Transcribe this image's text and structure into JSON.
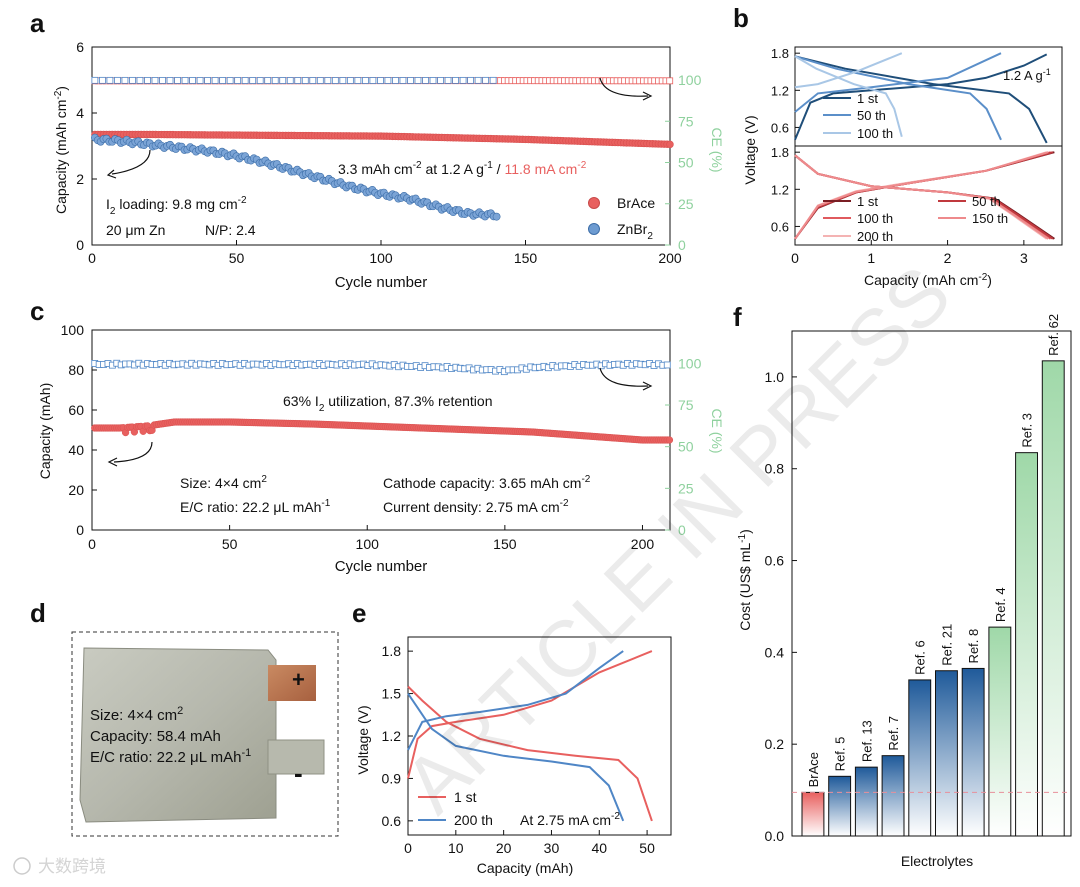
{
  "colors": {
    "red": "#e8605f",
    "blue": "#4f86c6",
    "green": "#a8d8b0",
    "darkred": "#7a1e24",
    "darkblue": "#1f4e79",
    "ce_green": "#8fd19e"
  },
  "watermark": "ARTICLE IN PRESS",
  "logo_text": "大数跨境",
  "chart_data": [
    {
      "panel": "a",
      "type": "scatter",
      "xlabel": "Cycle number",
      "ylabel": "Capacity (mAh cm-2)",
      "y2label": "CE (%)",
      "xlim": [
        0,
        200
      ],
      "ylim": [
        0,
        6
      ],
      "y2lim": [
        0,
        120
      ],
      "xticks": [
        "0",
        "50",
        "100",
        "150",
        "200"
      ],
      "yticks": [
        "0",
        "2",
        "4",
        "6"
      ],
      "y2ticks": [
        "0",
        "25",
        "50",
        "75",
        "100"
      ],
      "series": [
        {
          "name": "BrAce",
          "kind": "capacity",
          "x": [
            0,
            20,
            50,
            100,
            150,
            200
          ],
          "y": [
            3.35,
            3.35,
            3.33,
            3.3,
            3.2,
            3.05
          ]
        },
        {
          "name": "ZnBr2",
          "kind": "capacity",
          "x": [
            0,
            10,
            20,
            30,
            40,
            50,
            60,
            70,
            80,
            90,
            100,
            110,
            120,
            130,
            140
          ],
          "y": [
            3.2,
            3.15,
            3.05,
            2.95,
            2.85,
            2.7,
            2.5,
            2.25,
            2.0,
            1.75,
            1.55,
            1.4,
            1.15,
            0.95,
            0.9
          ]
        },
        {
          "name": "BrAce",
          "kind": "ce",
          "x": [
            0,
            50,
            100,
            150,
            200
          ],
          "y": [
            99.5,
            99.5,
            99.6,
            99.6,
            99.5
          ]
        },
        {
          "name": "ZnBr2",
          "kind": "ce",
          "x": [
            0,
            50,
            100,
            140
          ],
          "y": [
            99.8,
            99.7,
            99.7,
            99.8
          ]
        }
      ],
      "annotations": {
        "headline_a": "3.3 mAh cm",
        "headline_b": "-2",
        "headline_c": " at 1.2 A g",
        "headline_d": "-1",
        "headline_e": " / ",
        "headline_f": "11.8 mA cm",
        "headline_g": "-2",
        "loading_a": "I",
        "loading_b": "2",
        "loading_c": " loading: 9.8 mg cm",
        "loading_d": "-2",
        "zn": "20 μm Zn",
        "np": "N/P: 2.4"
      },
      "legend": [
        "BrAce",
        "ZnBr2"
      ]
    },
    {
      "panel": "b",
      "type": "line",
      "xlabel": "Capacity (mAh cm-2)",
      "ylabel": "Voltage (V)",
      "xlim": [
        0,
        3.5
      ],
      "xticks": [
        "0",
        "1",
        "2",
        "3"
      ],
      "yticks": [
        "0.6",
        "1.2",
        "1.8"
      ],
      "rate_label": "1.2 A g",
      "rate_sup": "-1",
      "top_series": [
        {
          "name": "1 st",
          "color": "#1f4e79",
          "x": [
            0,
            0.2,
            0.5,
            1.0,
            1.5,
            2.0,
            2.5,
            3.0,
            3.3
          ],
          "y": [
            0.4,
            1.0,
            1.15,
            1.2,
            1.25,
            1.3,
            1.4,
            1.6,
            1.78
          ]
        },
        {
          "name": "50 th",
          "color": "#5b8fc9",
          "x": [
            0,
            0.3,
            1.0,
            2.0,
            2.7
          ],
          "y": [
            0.85,
            1.15,
            1.25,
            1.4,
            1.8
          ]
        },
        {
          "name": "100 th",
          "color": "#a9c7e6",
          "x": [
            0,
            0.3,
            0.8,
            1.4
          ],
          "y": [
            1.25,
            1.3,
            1.5,
            1.8
          ]
        }
      ],
      "bottom_series": [
        {
          "name": "1 st",
          "color": "#7a1e24",
          "x": [
            0,
            0.3,
            0.8,
            1.5,
            2.5,
            3.4
          ],
          "y": [
            0.4,
            0.9,
            1.15,
            1.3,
            1.5,
            1.8
          ]
        },
        {
          "name": "100 th",
          "color": "#e05a5e",
          "x": [
            0,
            0.3,
            0.8,
            1.5,
            2.5,
            3.35
          ],
          "y": [
            0.4,
            0.92,
            1.16,
            1.3,
            1.5,
            1.8
          ]
        },
        {
          "name": "200 th",
          "color": "#f4b3b3",
          "x": [
            0,
            0.3,
            0.8,
            1.5,
            2.5,
            3.3
          ],
          "y": [
            0.4,
            0.94,
            1.17,
            1.31,
            1.5,
            1.8
          ]
        },
        {
          "name": "50 th",
          "color": "#c0393e",
          "x": [
            0,
            0.3,
            0.8,
            1.5,
            2.5,
            3.38
          ],
          "y": [
            0.4,
            0.91,
            1.15,
            1.3,
            1.5,
            1.8
          ]
        },
        {
          "name": "150 th",
          "color": "#ee8a8c",
          "x": [
            0,
            0.3,
            0.8,
            1.5,
            2.5,
            3.32
          ],
          "y": [
            0.4,
            0.93,
            1.16,
            1.3,
            1.5,
            1.8
          ]
        }
      ]
    },
    {
      "panel": "c",
      "type": "scatter",
      "xlabel": "Cycle number",
      "ylabel": "Capacity (mAh)",
      "y2label": "CE (%)",
      "xlim": [
        0,
        210
      ],
      "ylim": [
        0,
        100
      ],
      "y2lim": [
        0,
        120
      ],
      "xticks": [
        "0",
        "50",
        "100",
        "150",
        "200"
      ],
      "yticks": [
        "0",
        "20",
        "40",
        "60",
        "80",
        "100"
      ],
      "y2ticks": [
        "0",
        "25",
        "50",
        "75",
        "100"
      ],
      "series": [
        {
          "name": "capacity",
          "x": [
            0,
            10,
            20,
            30,
            50,
            80,
            100,
            120,
            140,
            160,
            180,
            200,
            210
          ],
          "y": [
            51,
            51,
            52,
            54,
            54,
            53,
            52,
            51,
            50,
            49,
            47,
            45,
            45
          ]
        },
        {
          "name": "CE",
          "x": [
            0,
            50,
            100,
            130,
            150,
            160,
            180,
            200,
            210
          ],
          "y": [
            99.5,
            99.4,
            99.2,
            97.5,
            95.5,
            97.5,
            99,
            99.5,
            99
          ]
        }
      ],
      "annotations": {
        "util_a": "63% I",
        "util_b": "2",
        "util_c": " utilization, 87.3% retention",
        "size_a": "Size: 4×4 cm",
        "size_b": "2",
        "ec_a": "E/C ratio: 22.2 μL mAh",
        "ec_b": "-1",
        "cath_a": "Cathode capacity: 3.65 mAh cm",
        "cath_b": "-2",
        "cd_a": "Current density: 2.75 mA cm",
        "cd_b": "-2"
      }
    },
    {
      "panel": "e",
      "type": "line",
      "xlabel": "Capacity (mAh)",
      "ylabel": "Voltage (V)",
      "xlim": [
        0,
        55
      ],
      "ylim": [
        0.5,
        1.9
      ],
      "xticks": [
        "0",
        "10",
        "20",
        "30",
        "40",
        "50"
      ],
      "yticks": [
        "0.6",
        "0.9",
        "1.2",
        "1.5",
        "1.8"
      ],
      "rate_a": "At 2.75 mA cm",
      "rate_b": "-2",
      "series": [
        {
          "name": "1 st",
          "color": "#e8605f",
          "charge": {
            "x": [
              0,
              2,
              5,
              10,
              20,
              30,
              40,
              51
            ],
            "y": [
              0.9,
              1.18,
              1.27,
              1.3,
              1.35,
              1.45,
              1.65,
              1.8
            ]
          },
          "discharge": {
            "x": [
              0,
              3,
              8,
              15,
              25,
              35,
              44,
              48,
              51
            ],
            "y": [
              1.55,
              1.45,
              1.3,
              1.18,
              1.1,
              1.06,
              1.03,
              0.9,
              0.6
            ]
          }
        },
        {
          "name": "200 th",
          "color": "#4f86c6",
          "charge": {
            "x": [
              0,
              3,
              8,
              15,
              25,
              33,
              40,
              45
            ],
            "y": [
              1.1,
              1.3,
              1.34,
              1.37,
              1.42,
              1.5,
              1.68,
              1.8
            ]
          },
          "discharge": {
            "x": [
              0,
              2,
              5,
              10,
              20,
              30,
              38,
              42,
              45
            ],
            "y": [
              1.5,
              1.4,
              1.25,
              1.13,
              1.06,
              1.02,
              0.98,
              0.85,
              0.6
            ]
          }
        }
      ]
    },
    {
      "panel": "f",
      "type": "bar",
      "xlabel": "Electrolytes",
      "ylabel": "Cost (US$ mL-1)",
      "ylim": [
        0,
        1.1
      ],
      "yticks": [
        "0.0",
        "0.2",
        "0.4",
        "0.6",
        "0.8",
        "1.0"
      ],
      "categories": [
        "BrAce",
        "Ref. 5",
        "Ref. 13",
        "Ref. 7",
        "Ref. 6",
        "Ref. 21",
        "Ref. 8",
        "Ref. 4",
        "Ref. 3",
        "Ref. 62"
      ],
      "values": [
        0.095,
        0.13,
        0.15,
        0.175,
        0.34,
        0.36,
        0.365,
        0.455,
        0.835,
        1.035
      ],
      "groups": [
        "red",
        "blue",
        "blue",
        "blue",
        "blue",
        "blue",
        "blue",
        "green",
        "green",
        "green"
      ],
      "reference_line": 0.095
    }
  ],
  "panels": {
    "a": "a",
    "b": "b",
    "c": "c",
    "d": "d",
    "e": "e",
    "f": "f"
  },
  "photo": {
    "line1_a": "Size: 4×4 cm",
    "line1_b": "2",
    "line2": "Capacity: 58.4 mAh",
    "line3_a": "E/C ratio: 22.2 μL mAh",
    "line3_b": "-1",
    "plus": "+",
    "minus": "-"
  }
}
